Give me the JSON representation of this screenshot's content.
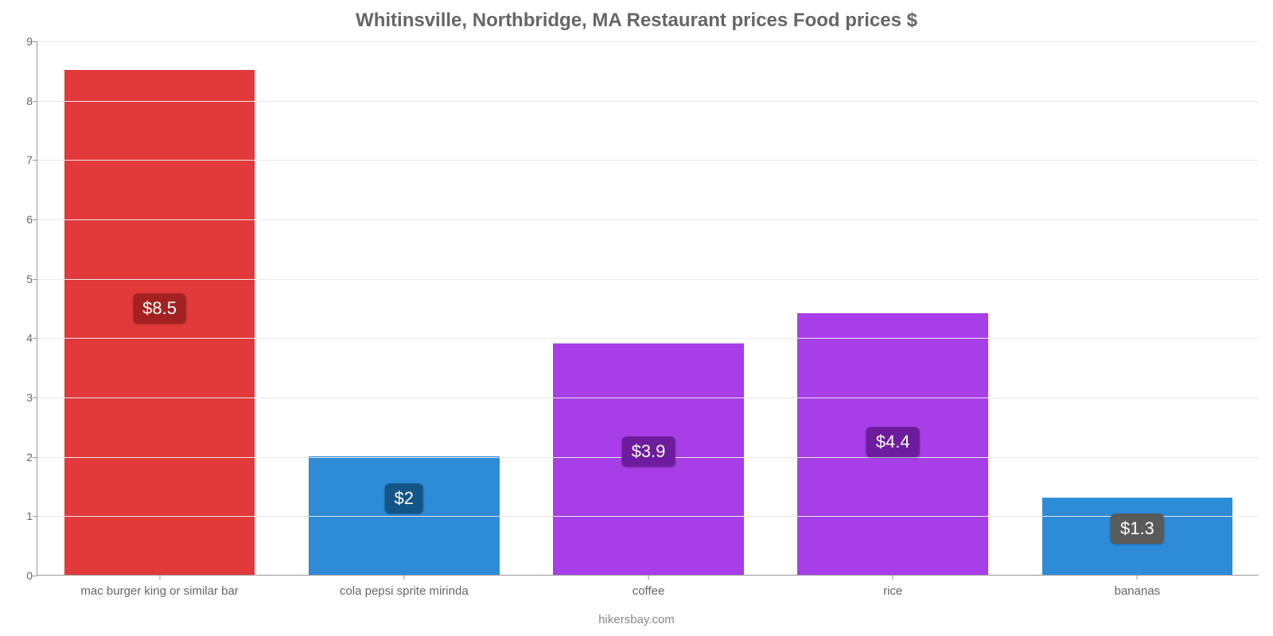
{
  "chart": {
    "type": "bar",
    "title": "Whitinsville, Northbridge, MA Restaurant prices Food prices $",
    "title_color": "#666666",
    "title_fontsize": 24,
    "attribution": "hikersbay.com",
    "attribution_color": "#888888",
    "background_color": "#ffffff",
    "grid_color": "#e8e8e8",
    "axis_color": "#999999",
    "tick_label_color": "#666666",
    "tick_fontsize": 14,
    "xtick_fontsize": 15,
    "value_label_fontsize": 22,
    "ylim": [
      0,
      9
    ],
    "ytick_step": 1,
    "yticks": [
      0,
      1,
      2,
      3,
      4,
      5,
      6,
      7,
      8,
      9
    ],
    "bar_width_ratio": 0.78,
    "categories": [
      "mac burger king or similar bar",
      "cola pepsi sprite mirinda",
      "coffee",
      "rice",
      "bananas"
    ],
    "values": [
      8.5,
      2.0,
      3.9,
      4.4,
      1.3
    ],
    "value_labels": [
      "$8.5",
      "$2",
      "$3.9",
      "$4.4",
      "$1.3"
    ],
    "bar_colors": [
      "#e2393a",
      "#2d8bd7",
      "#a73ee7",
      "#a73ee7",
      "#2d8bd7"
    ],
    "label_bg_colors": [
      "#a42121",
      "#145588",
      "#6c1c9c",
      "#6c1c9c",
      "#5a5a5a"
    ],
    "label_y_values": [
      4.75,
      1.55,
      2.35,
      2.5,
      1.05
    ]
  }
}
